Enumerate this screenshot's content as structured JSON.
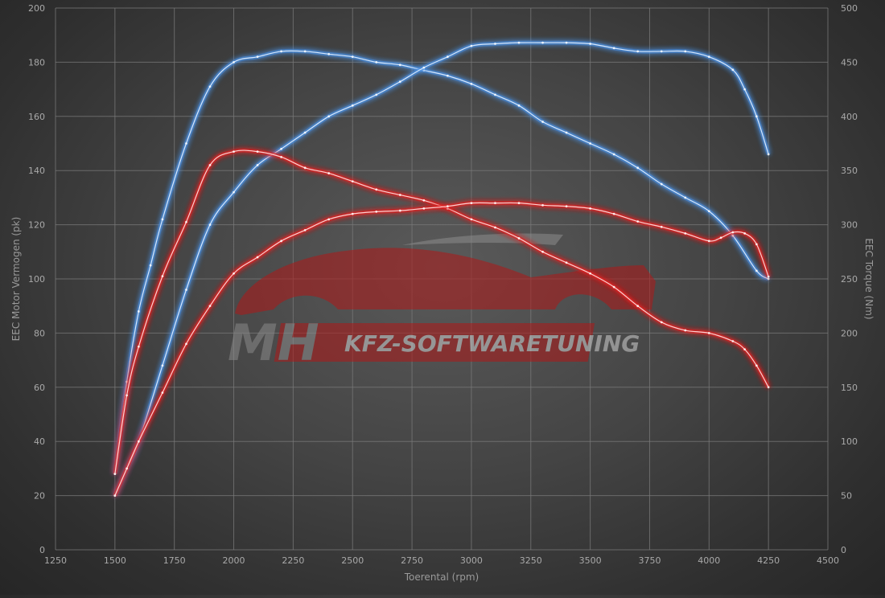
{
  "chart_data": {
    "type": "line",
    "xlabel": "Toerental (rpm)",
    "ylabel_left": "EEC Motor Vermogen (pk)",
    "ylabel_right": "EEC Torque (Nm)",
    "xlim": [
      1250,
      4500
    ],
    "ylim_left": [
      0,
      200
    ],
    "ylim_right": [
      0,
      500
    ],
    "x_ticks": [
      1250,
      1500,
      1750,
      2000,
      2250,
      2500,
      2750,
      3000,
      3250,
      3500,
      3750,
      4000,
      4250,
      4500
    ],
    "y_ticks_left": [
      0,
      20,
      40,
      60,
      80,
      100,
      120,
      140,
      160,
      180,
      200
    ],
    "y_ticks_right": [
      0,
      50,
      100,
      150,
      200,
      250,
      300,
      350,
      400,
      450,
      500
    ],
    "grid": true,
    "series": [
      {
        "color": "#4a90e2",
        "axis": "left",
        "points": [
          [
            1500,
            28
          ],
          [
            1550,
            62
          ],
          [
            1600,
            88
          ],
          [
            1650,
            105
          ],
          [
            1700,
            122
          ],
          [
            1800,
            150
          ],
          [
            1900,
            171
          ],
          [
            2000,
            180
          ],
          [
            2100,
            182
          ],
          [
            2200,
            184
          ],
          [
            2300,
            184
          ],
          [
            2400,
            183
          ],
          [
            2500,
            182
          ],
          [
            2600,
            180
          ],
          [
            2700,
            179
          ],
          [
            2800,
            177
          ],
          [
            2900,
            175
          ],
          [
            3000,
            172
          ],
          [
            3100,
            168
          ],
          [
            3200,
            164
          ],
          [
            3300,
            158
          ],
          [
            3400,
            154
          ],
          [
            3500,
            150
          ],
          [
            3600,
            146
          ],
          [
            3700,
            141
          ],
          [
            3800,
            135
          ],
          [
            3900,
            130
          ],
          [
            4000,
            125
          ],
          [
            4100,
            116
          ],
          [
            4200,
            103
          ],
          [
            4250,
            100
          ]
        ]
      },
      {
        "color": "#4a90e2",
        "axis": "right",
        "points": [
          [
            1500,
            50
          ],
          [
            1550,
            75
          ],
          [
            1600,
            100
          ],
          [
            1700,
            170
          ],
          [
            1800,
            240
          ],
          [
            1900,
            300
          ],
          [
            2000,
            330
          ],
          [
            2100,
            355
          ],
          [
            2200,
            370
          ],
          [
            2300,
            385
          ],
          [
            2400,
            400
          ],
          [
            2500,
            410
          ],
          [
            2600,
            420
          ],
          [
            2700,
            432
          ],
          [
            2800,
            445
          ],
          [
            2900,
            455
          ],
          [
            3000,
            465
          ],
          [
            3100,
            467
          ],
          [
            3200,
            468
          ],
          [
            3300,
            468
          ],
          [
            3400,
            468
          ],
          [
            3500,
            467
          ],
          [
            3600,
            463
          ],
          [
            3700,
            460
          ],
          [
            3800,
            460
          ],
          [
            3900,
            460
          ],
          [
            4000,
            455
          ],
          [
            4100,
            443
          ],
          [
            4150,
            425
          ],
          [
            4200,
            400
          ],
          [
            4250,
            365
          ]
        ]
      },
      {
        "color": "#e02020",
        "axis": "left",
        "points": [
          [
            1500,
            28
          ],
          [
            1550,
            57
          ],
          [
            1600,
            75
          ],
          [
            1700,
            101
          ],
          [
            1800,
            121
          ],
          [
            1900,
            142
          ],
          [
            2000,
            147
          ],
          [
            2100,
            147
          ],
          [
            2200,
            145
          ],
          [
            2300,
            141
          ],
          [
            2400,
            139
          ],
          [
            2500,
            136
          ],
          [
            2600,
            133
          ],
          [
            2700,
            131
          ],
          [
            2800,
            129
          ],
          [
            2900,
            126
          ],
          [
            3000,
            122
          ],
          [
            3100,
            119
          ],
          [
            3200,
            115
          ],
          [
            3300,
            110
          ],
          [
            3400,
            106
          ],
          [
            3500,
            102
          ],
          [
            3600,
            97
          ],
          [
            3700,
            90
          ],
          [
            3800,
            84
          ],
          [
            3900,
            81
          ],
          [
            4000,
            80
          ],
          [
            4100,
            77
          ],
          [
            4150,
            74
          ],
          [
            4200,
            68
          ],
          [
            4250,
            60
          ]
        ]
      },
      {
        "color": "#e02020",
        "axis": "right",
        "points": [
          [
            1500,
            50
          ],
          [
            1550,
            75
          ],
          [
            1600,
            100
          ],
          [
            1700,
            145
          ],
          [
            1800,
            190
          ],
          [
            1900,
            225
          ],
          [
            2000,
            255
          ],
          [
            2100,
            270
          ],
          [
            2200,
            285
          ],
          [
            2300,
            295
          ],
          [
            2400,
            305
          ],
          [
            2500,
            310
          ],
          [
            2600,
            312
          ],
          [
            2700,
            313
          ],
          [
            2800,
            315
          ],
          [
            2900,
            317
          ],
          [
            3000,
            320
          ],
          [
            3100,
            320
          ],
          [
            3200,
            320
          ],
          [
            3300,
            318
          ],
          [
            3400,
            317
          ],
          [
            3500,
            315
          ],
          [
            3600,
            310
          ],
          [
            3700,
            303
          ],
          [
            3800,
            298
          ],
          [
            3900,
            292
          ],
          [
            4000,
            285
          ],
          [
            4050,
            288
          ],
          [
            4100,
            293
          ],
          [
            4150,
            292
          ],
          [
            4200,
            282
          ],
          [
            4250,
            252
          ]
        ]
      }
    ]
  },
  "logo": {
    "mark": "MH",
    "tagline": "KFZ-SOFTWARETUNING"
  }
}
